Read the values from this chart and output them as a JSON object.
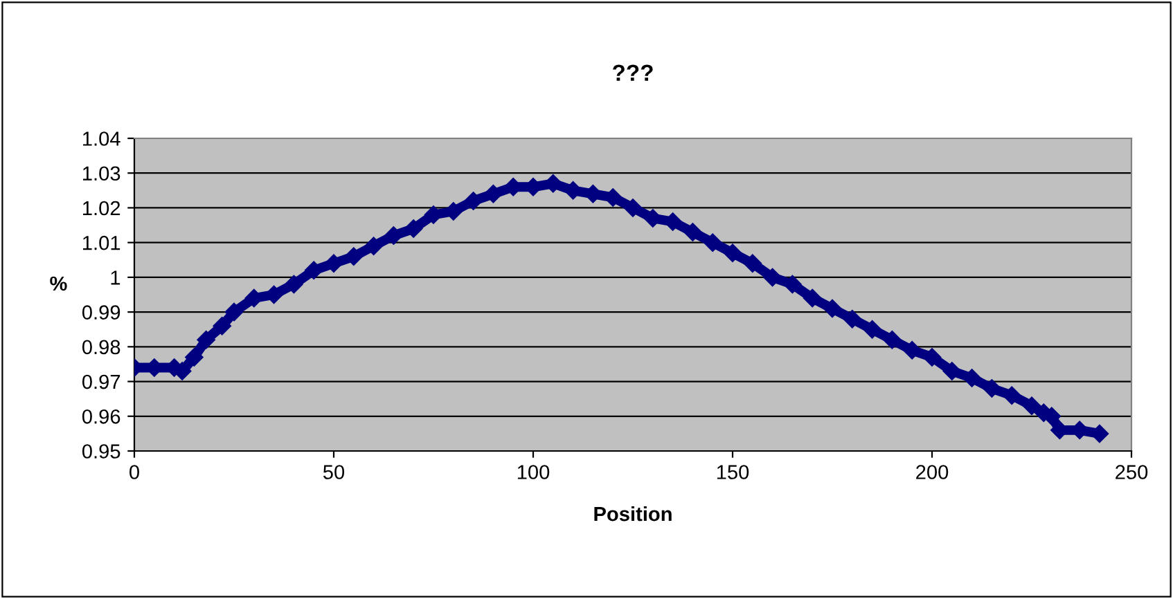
{
  "chart_data": {
    "type": "line",
    "title": "???",
    "xlabel": "Position",
    "ylabel": "%",
    "xlim": [
      0,
      250
    ],
    "xticks": [
      0,
      50,
      100,
      150,
      200,
      250
    ],
    "ylim": [
      0.95,
      1.04
    ],
    "yticks": [
      0.95,
      0.96,
      0.97,
      0.98,
      0.99,
      1,
      1.01,
      1.02,
      1.03,
      1.04
    ],
    "grid": "y",
    "marker": "diamond",
    "line_style": "solid",
    "series": [
      {
        "color": "#000080",
        "x": [
          0,
          5,
          10,
          12,
          15,
          18,
          22,
          25,
          30,
          35,
          40,
          45,
          50,
          55,
          60,
          65,
          70,
          75,
          80,
          85,
          90,
          95,
          100,
          105,
          110,
          115,
          120,
          125,
          130,
          135,
          140,
          145,
          150,
          155,
          160,
          165,
          170,
          175,
          180,
          185,
          190,
          195,
          200,
          205,
          210,
          215,
          220,
          225,
          228,
          230,
          232,
          237,
          242
        ],
        "values": [
          0.974,
          0.974,
          0.974,
          0.973,
          0.977,
          0.982,
          0.986,
          0.99,
          0.994,
          0.995,
          0.998,
          1.002,
          1.004,
          1.006,
          1.009,
          1.012,
          1.014,
          1.018,
          1.019,
          1.022,
          1.024,
          1.026,
          1.026,
          1.027,
          1.025,
          1.024,
          1.023,
          1.02,
          1.017,
          1.016,
          1.013,
          1.01,
          1.007,
          1.004,
          1.0,
          0.998,
          0.994,
          0.991,
          0.988,
          0.985,
          0.982,
          0.979,
          0.977,
          0.973,
          0.971,
          0.968,
          0.966,
          0.963,
          0.961,
          0.96,
          0.956,
          0.956,
          0.955
        ]
      }
    ]
  }
}
